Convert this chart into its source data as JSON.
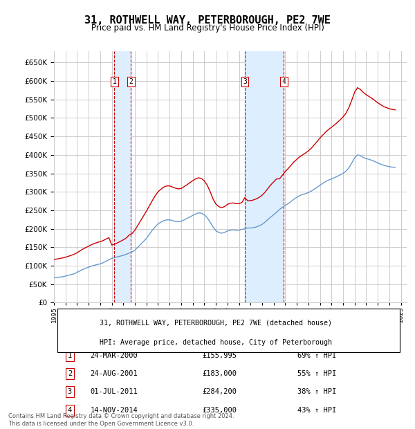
{
  "title": "31, ROTHWELL WAY, PETERBOROUGH, PE2 7WE",
  "subtitle": "Price paid vs. HM Land Registry's House Price Index (HPI)",
  "footer": "Contains HM Land Registry data © Crown copyright and database right 2024.\nThis data is licensed under the Open Government Licence v3.0.",
  "ylim": [
    0,
    680000
  ],
  "yticks": [
    0,
    50000,
    100000,
    150000,
    200000,
    250000,
    300000,
    350000,
    400000,
    450000,
    500000,
    550000,
    600000,
    650000
  ],
  "xlim_start": 1995.0,
  "xlim_end": 2025.5,
  "sale_color": "#cc0000",
  "hpi_color": "#6699cc",
  "grid_color": "#cccccc",
  "vline_color": "#cc0000",
  "vspan_color": "#ddeeff",
  "sale_dates": [
    2000.23,
    2001.65,
    2011.5,
    2014.88
  ],
  "sale_prices": [
    155995,
    183000,
    284200,
    335000
  ],
  "sale_labels": [
    "1",
    "2",
    "3",
    "4"
  ],
  "sale_entries": [
    [
      "1",
      "24-MAR-2000",
      "£155,995",
      "69% ↑ HPI"
    ],
    [
      "2",
      "24-AUG-2001",
      "£183,000",
      "55% ↑ HPI"
    ],
    [
      "3",
      "01-JUL-2011",
      "£284,200",
      "38% ↑ HPI"
    ],
    [
      "4",
      "14-NOV-2014",
      "£335,000",
      "43% ↑ HPI"
    ]
  ],
  "legend_label_red": "31, ROTHWELL WAY, PETERBOROUGH, PE2 7WE (detached house)",
  "legend_label_blue": "HPI: Average price, detached house, City of Peterborough",
  "hpi_x": [
    1995.0,
    1995.25,
    1995.5,
    1995.75,
    1996.0,
    1996.25,
    1996.5,
    1996.75,
    1997.0,
    1997.25,
    1997.5,
    1997.75,
    1998.0,
    1998.25,
    1998.5,
    1998.75,
    1999.0,
    1999.25,
    1999.5,
    1999.75,
    2000.0,
    2000.25,
    2000.5,
    2000.75,
    2001.0,
    2001.25,
    2001.5,
    2001.75,
    2002.0,
    2002.25,
    2002.5,
    2002.75,
    2003.0,
    2003.25,
    2003.5,
    2003.75,
    2004.0,
    2004.25,
    2004.5,
    2004.75,
    2005.0,
    2005.25,
    2005.5,
    2005.75,
    2006.0,
    2006.25,
    2006.5,
    2006.75,
    2007.0,
    2007.25,
    2007.5,
    2007.75,
    2008.0,
    2008.25,
    2008.5,
    2008.75,
    2009.0,
    2009.25,
    2009.5,
    2009.75,
    2010.0,
    2010.25,
    2010.5,
    2010.75,
    2011.0,
    2011.25,
    2011.5,
    2011.75,
    2012.0,
    2012.25,
    2012.5,
    2012.75,
    2013.0,
    2013.25,
    2013.5,
    2013.75,
    2014.0,
    2014.25,
    2014.5,
    2014.75,
    2015.0,
    2015.25,
    2015.5,
    2015.75,
    2016.0,
    2016.25,
    2016.5,
    2016.75,
    2017.0,
    2017.25,
    2017.5,
    2017.75,
    2018.0,
    2018.25,
    2018.5,
    2018.75,
    2019.0,
    2019.25,
    2019.5,
    2019.75,
    2020.0,
    2020.25,
    2020.5,
    2020.75,
    2021.0,
    2021.25,
    2021.5,
    2021.75,
    2022.0,
    2022.25,
    2022.5,
    2022.75,
    2023.0,
    2023.25,
    2023.5,
    2023.75,
    2024.0,
    2024.25,
    2024.5
  ],
  "hpi_y": [
    67000,
    68000,
    69000,
    70000,
    72000,
    74000,
    76000,
    78000,
    82000,
    86000,
    90000,
    93000,
    96000,
    99000,
    101000,
    103000,
    105000,
    108000,
    112000,
    116000,
    120000,
    122000,
    124000,
    126000,
    128000,
    131000,
    134000,
    137000,
    142000,
    150000,
    158000,
    166000,
    174000,
    185000,
    196000,
    205000,
    213000,
    218000,
    222000,
    224000,
    224000,
    222000,
    220000,
    219000,
    220000,
    224000,
    228000,
    232000,
    236000,
    240000,
    243000,
    242000,
    238000,
    230000,
    218000,
    205000,
    195000,
    190000,
    188000,
    190000,
    194000,
    196000,
    197000,
    196000,
    196000,
    198000,
    200000,
    202000,
    202000,
    203000,
    205000,
    208000,
    212000,
    218000,
    225000,
    232000,
    238000,
    245000,
    252000,
    258000,
    263000,
    268000,
    274000,
    280000,
    285000,
    290000,
    293000,
    295000,
    298000,
    302000,
    307000,
    312000,
    318000,
    323000,
    328000,
    332000,
    335000,
    338000,
    342000,
    346000,
    350000,
    356000,
    365000,
    378000,
    392000,
    400000,
    398000,
    393000,
    390000,
    388000,
    385000,
    382000,
    378000,
    375000,
    372000,
    370000,
    368000,
    367000,
    366000
  ],
  "red_x": [
    1995.0,
    1995.25,
    1995.5,
    1995.75,
    1996.0,
    1996.25,
    1996.5,
    1996.75,
    1997.0,
    1997.25,
    1997.5,
    1997.75,
    1998.0,
    1998.25,
    1998.5,
    1998.75,
    1999.0,
    1999.25,
    1999.5,
    1999.75,
    2000.0,
    2000.25,
    2000.5,
    2000.75,
    2001.0,
    2001.25,
    2001.5,
    2001.75,
    2002.0,
    2002.25,
    2002.5,
    2002.75,
    2003.0,
    2003.25,
    2003.5,
    2003.75,
    2004.0,
    2004.25,
    2004.5,
    2004.75,
    2005.0,
    2005.25,
    2005.5,
    2005.75,
    2006.0,
    2006.25,
    2006.5,
    2006.75,
    2007.0,
    2007.25,
    2007.5,
    2007.75,
    2008.0,
    2008.25,
    2008.5,
    2008.75,
    2009.0,
    2009.25,
    2009.5,
    2009.75,
    2010.0,
    2010.25,
    2010.5,
    2010.75,
    2011.0,
    2011.25,
    2011.5,
    2011.75,
    2012.0,
    2012.25,
    2012.5,
    2012.75,
    2013.0,
    2013.25,
    2013.5,
    2013.75,
    2014.0,
    2014.25,
    2014.5,
    2014.75,
    2015.0,
    2015.25,
    2015.5,
    2015.75,
    2016.0,
    2016.25,
    2016.5,
    2016.75,
    2017.0,
    2017.25,
    2017.5,
    2017.75,
    2018.0,
    2018.25,
    2018.5,
    2018.75,
    2019.0,
    2019.25,
    2019.5,
    2019.75,
    2020.0,
    2020.25,
    2020.5,
    2020.75,
    2021.0,
    2021.25,
    2021.5,
    2021.75,
    2022.0,
    2022.25,
    2022.5,
    2022.75,
    2023.0,
    2023.25,
    2023.5,
    2023.75,
    2024.0,
    2024.25,
    2024.5
  ],
  "red_y": [
    117000,
    118000,
    119500,
    121000,
    123000,
    125500,
    128000,
    131000,
    135000,
    140000,
    145000,
    149000,
    153000,
    157000,
    160000,
    163000,
    165000,
    168000,
    172000,
    176000,
    155995,
    158000,
    162000,
    166000,
    170000,
    175000,
    183000,
    187000,
    196000,
    209000,
    222000,
    235000,
    248000,
    262000,
    276000,
    289000,
    300000,
    307000,
    313000,
    316000,
    316000,
    313000,
    310000,
    308000,
    309000,
    314000,
    319000,
    325000,
    330000,
    335000,
    338000,
    336000,
    330000,
    318000,
    301000,
    281000,
    267000,
    260000,
    257000,
    260000,
    266000,
    269000,
    270000,
    268000,
    268000,
    271000,
    284200,
    276000,
    276000,
    278000,
    281000,
    285000,
    291000,
    299000,
    309000,
    319000,
    327000,
    335000,
    335000,
    345000,
    355000,
    363000,
    372000,
    381000,
    388000,
    395000,
    400000,
    405000,
    411000,
    418000,
    427000,
    436000,
    446000,
    454000,
    462000,
    469000,
    475000,
    481000,
    488000,
    495000,
    503000,
    513000,
    528000,
    548000,
    570000,
    582000,
    577000,
    569000,
    563000,
    558000,
    553000,
    547000,
    541000,
    536000,
    531000,
    528000,
    525000,
    523000,
    522000
  ]
}
